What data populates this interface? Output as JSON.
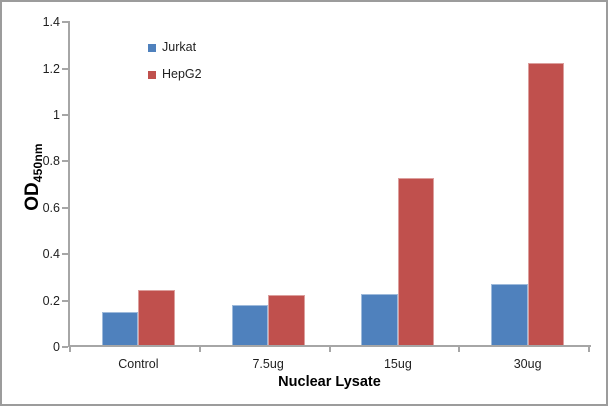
{
  "figure": {
    "background": "#ffffff",
    "frame_border_color": "#9c9c9c",
    "axis_color": "#a6a6a6",
    "text_color": "#1f1f1f"
  },
  "chart_data": {
    "type": "bar",
    "title": "",
    "xlabel": "Nuclear Lysate",
    "ylabel": {
      "main": "OD",
      "sub": "450nm"
    },
    "categories": [
      "Control",
      "7.5ug",
      "15ug",
      "30ug"
    ],
    "series": [
      {
        "name": "Jurkat",
        "color": "#4F81BD",
        "values": [
          0.15,
          0.18,
          0.23,
          0.27
        ]
      },
      {
        "name": "HepG2",
        "color": "#C0504D",
        "values": [
          0.245,
          0.225,
          0.73,
          1.225
        ]
      }
    ],
    "ylim": [
      0,
      1.4
    ],
    "ytick_step": 0.2,
    "ytick_labels": [
      "0",
      "0.2",
      "0.4",
      "0.6",
      "0.8",
      "1",
      "1.2",
      "1.4"
    ],
    "grid": false,
    "legend_position": "upper-left-inside"
  }
}
